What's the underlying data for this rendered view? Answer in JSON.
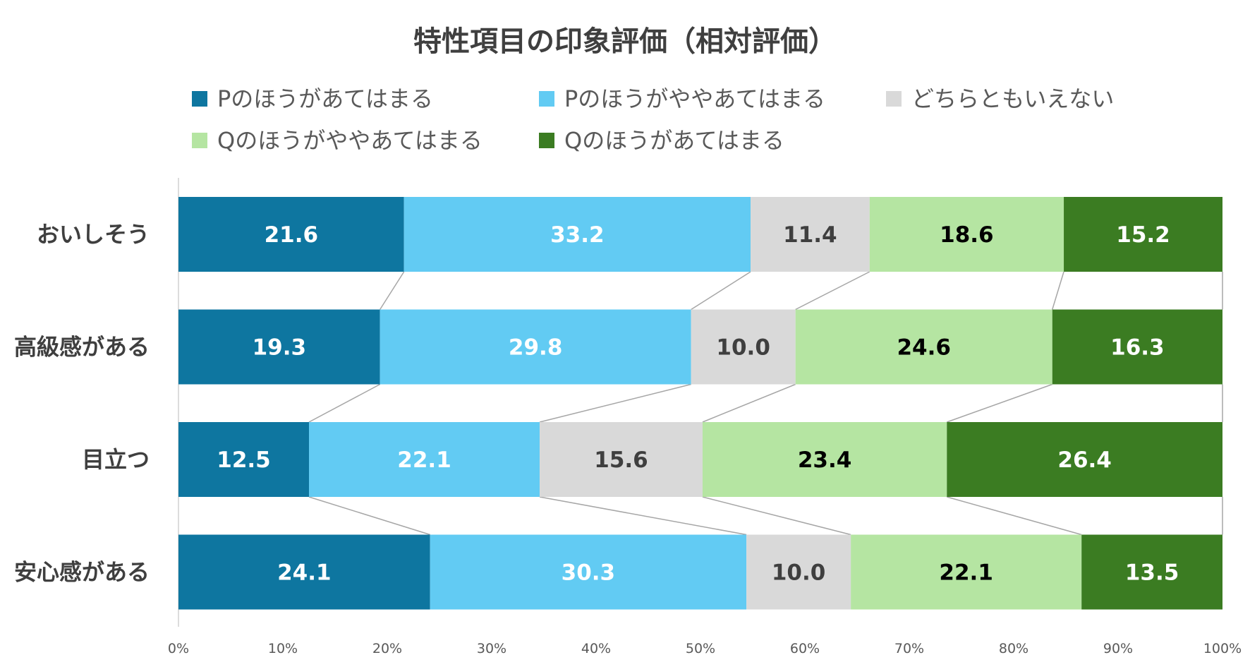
{
  "chart_data": {
    "type": "bar",
    "orientation": "horizontal",
    "stacked": "percent",
    "title": "特性項目の印象評価（相対評価）",
    "categories": [
      "おいしそう",
      "高級感がある",
      "目立つ",
      "安心感がある"
    ],
    "series": [
      {
        "name": "Pのほうがあてはまる",
        "color": "#0e76a0",
        "label_color": "#ffffff",
        "values": [
          21.6,
          19.3,
          12.5,
          24.1
        ]
      },
      {
        "name": "Pのほうがややあてはまる",
        "color": "#62cbf3",
        "label_color": "#ffffff",
        "values": [
          33.2,
          29.8,
          22.1,
          30.3
        ]
      },
      {
        "name": "どちらともいえない",
        "color": "#d9d9d9",
        "label_color": "#3f3f3f",
        "values": [
          11.4,
          10.0,
          15.6,
          10.0
        ]
      },
      {
        "name": "Qのほうがややあてはまる",
        "color": "#b5e5a2",
        "label_color": "#000000",
        "values": [
          18.6,
          24.6,
          23.4,
          22.1
        ]
      },
      {
        "name": "Qのほうがあてはまる",
        "color": "#3b7c22",
        "label_color": "#ffffff",
        "values": [
          15.2,
          16.3,
          26.4,
          13.5
        ]
      }
    ],
    "xlim": [
      0,
      100
    ],
    "xticks": [
      "0%",
      "10%",
      "20%",
      "30%",
      "40%",
      "50%",
      "60%",
      "70%",
      "80%",
      "90%",
      "100%"
    ],
    "series_lines": true,
    "grid": false,
    "legend": "top"
  }
}
